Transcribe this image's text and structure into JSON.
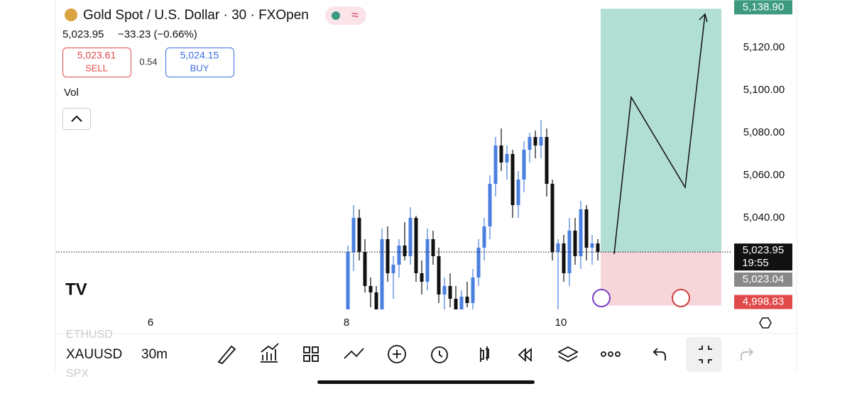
{
  "header": {
    "title": "Gold Spot / U.S. Dollar · 30 · FXOpen",
    "quote": "5,023.95",
    "change": "−33.23 (−0.66%)",
    "sell": {
      "price": "5,023.61",
      "label": "SELL"
    },
    "spread": "0.54",
    "buy": {
      "price": "5,024.15",
      "label": "BUY"
    },
    "indicator": "Vol"
  },
  "chart_data": {
    "type": "candlestick",
    "up_color": "#4a7fe0",
    "down_color": "#111111",
    "candles": [
      [
        4997,
        5027,
        4990,
        5024
      ],
      [
        5024,
        5046,
        5015,
        5040
      ],
      [
        5040,
        5044,
        5020,
        5024
      ],
      [
        5024,
        5030,
        5005,
        5008
      ],
      [
        5008,
        5012,
        4998,
        5005
      ],
      [
        5005,
        5008,
        4992,
        4995
      ],
      [
        4995,
        5035,
        4993,
        5030
      ],
      [
        5030,
        5036,
        5010,
        5014
      ],
      [
        5014,
        5022,
        5002,
        5018
      ],
      [
        5018,
        5030,
        5012,
        5027
      ],
      [
        5027,
        5038,
        5020,
        5022
      ],
      [
        5022,
        5045,
        5018,
        5040
      ],
      [
        5040,
        5041,
        5010,
        5014
      ],
      [
        5014,
        5020,
        5004,
        5010
      ],
      [
        5010,
        5035,
        5006,
        5030
      ],
      [
        5030,
        5034,
        5018,
        5022
      ],
      [
        5022,
        5026,
        5000,
        5004
      ],
      [
        5004,
        5012,
        4996,
        5008
      ],
      [
        5008,
        5014,
        4998,
        5002
      ],
      [
        5002,
        5008,
        4993,
        4996
      ],
      [
        4996,
        5006,
        4992,
        5003
      ],
      [
        5003,
        5010,
        4998,
        5000
      ],
      [
        5000,
        5016,
        4996,
        5012
      ],
      [
        5012,
        5030,
        5008,
        5026
      ],
      [
        5026,
        5040,
        5020,
        5036
      ],
      [
        5036,
        5060,
        5030,
        5056
      ],
      [
        5056,
        5078,
        5050,
        5074
      ],
      [
        5074,
        5082,
        5062,
        5066
      ],
      [
        5066,
        5074,
        5058,
        5070
      ],
      [
        5070,
        5072,
        5040,
        5046
      ],
      [
        5046,
        5062,
        5040,
        5058
      ],
      [
        5058,
        5076,
        5052,
        5072
      ],
      [
        5072,
        5080,
        5066,
        5078
      ],
      [
        5078,
        5081,
        5068,
        5074
      ],
      [
        5074,
        5086,
        5068,
        5078
      ],
      [
        5078,
        5082,
        5050,
        5056
      ],
      [
        5056,
        5058,
        5020,
        5024
      ],
      [
        5024,
        5030,
        4985,
        5028
      ],
      [
        5028,
        5032,
        5010,
        5014
      ],
      [
        5014,
        5040,
        5008,
        5034
      ],
      [
        5034,
        5040,
        5018,
        5022
      ],
      [
        5022,
        5048,
        5016,
        5044
      ],
      [
        5044,
        5046,
        5020,
        5026
      ],
      [
        5026,
        5032,
        5018,
        5028
      ],
      [
        5028,
        5030,
        5020,
        5023.95
      ]
    ],
    "ylim": [
      4997,
      5140
    ],
    "yticks": [
      {
        "value": 5040,
        "label": "5,040.00"
      },
      {
        "value": 5060,
        "label": "5,060.00"
      },
      {
        "value": 5080,
        "label": "5,080.00"
      },
      {
        "value": 5100,
        "label": "5,100.00"
      },
      {
        "value": 5120,
        "label": "5,120.00"
      }
    ],
    "x_labels": [
      "6",
      "8",
      "10"
    ],
    "target": {
      "value": 5138.9,
      "label": "5,138.90"
    },
    "last": {
      "value": 5023.95,
      "label": "5,023.95"
    },
    "countdown": "19:55",
    "bid": {
      "value": 5023.04,
      "label": "5,023.04"
    },
    "stop": {
      "value": 4998.83,
      "label": "4,998.83"
    }
  },
  "toolbar": {
    "symbol": "XAUUSD",
    "interval": "30m",
    "prev_symbol": "ETHUSD",
    "next_symbol": "SPX"
  }
}
